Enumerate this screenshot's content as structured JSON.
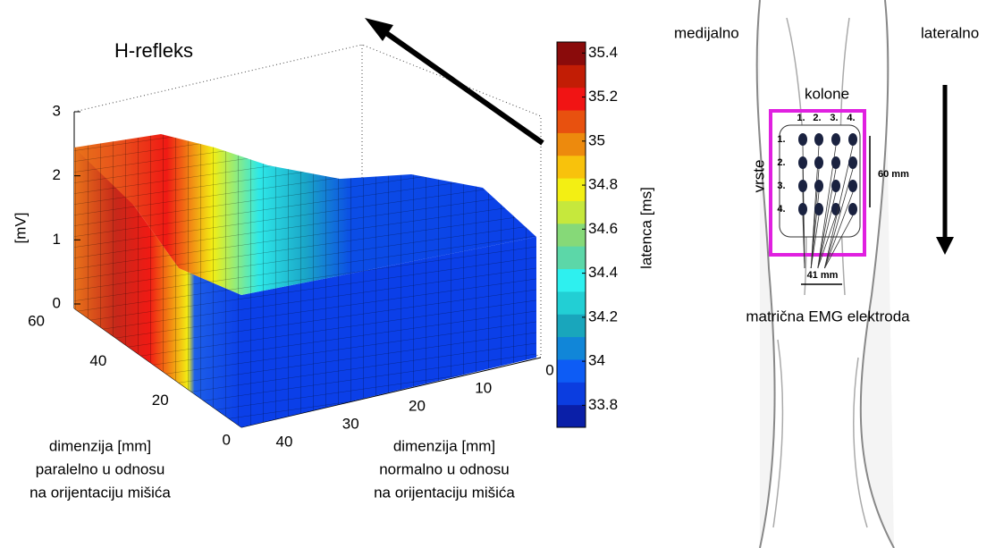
{
  "plot": {
    "title": "H-refleks",
    "z_label": "[mV]",
    "zlim": [
      0,
      3
    ],
    "zticks": [
      0,
      1,
      2,
      3
    ],
    "ylim": [
      0,
      60
    ],
    "yticks": [
      0,
      20,
      40,
      60
    ],
    "xlim": [
      0,
      40
    ],
    "xticks": [
      0,
      10,
      20,
      30,
      40
    ],
    "y_label": [
      "dimenzija [mm]",
      "paralelno u odnosu",
      "na orijentaciju mišića"
    ],
    "x_label": [
      "dimenzija [mm]",
      "normalno u odnosu",
      "na orijentaciju mišića"
    ]
  },
  "colorbar": {
    "label": "latenca [ms]",
    "clim": [
      33.7,
      35.45
    ],
    "ticks": [
      33.8,
      34,
      34.2,
      34.4,
      34.6,
      34.8,
      35,
      35.2,
      35.4
    ],
    "colors": [
      "#0a1fa8",
      "#0b3de0",
      "#0d5cf5",
      "#1186d8",
      "#19a6bc",
      "#22cfd4",
      "#2ef0ef",
      "#5cd7a8",
      "#86d978",
      "#c6e83c",
      "#f3ef13",
      "#f8c20c",
      "#ed8a0d",
      "#e8510f",
      "#f11414",
      "#c21d05",
      "#8a0b0b"
    ]
  },
  "diagram": {
    "medial": "medijalno",
    "lateral": "lateralno",
    "columns_label": "kolone",
    "column_numbers": [
      "1.",
      "2.",
      "3.",
      "4."
    ],
    "rows_label": "vrste",
    "row_numbers": [
      "1.",
      "2.",
      "3.",
      "4."
    ],
    "height": "60 mm",
    "width": "41 mm",
    "caption": "matrična EMG elektroda"
  }
}
